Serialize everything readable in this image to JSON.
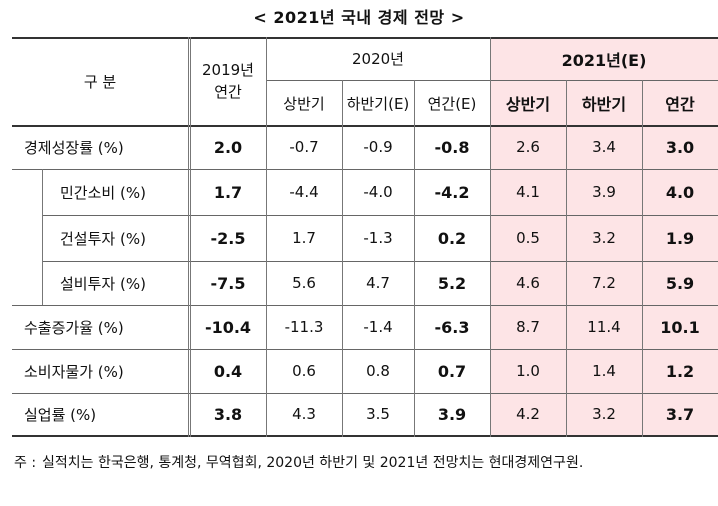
{
  "title": "< 2021년 국내 경제 전망 >",
  "header": {
    "category": "구     분",
    "y2019": "2019년",
    "y2019_sub": "연간",
    "y2020": "2020년",
    "y2020_h1": "상반기",
    "y2020_h2": "하반기(E)",
    "y2020_annual": "연간(E)",
    "y2021": "2021년(E)",
    "y2021_h1": "상반기",
    "y2021_h2": "하반기",
    "y2021_annual": "연간"
  },
  "rows": [
    {
      "label": "경제성장률 (%)",
      "v": [
        "2.0",
        "-0.7",
        "-0.9",
        "-0.8",
        "2.6",
        "3.4",
        "3.0"
      ]
    },
    {
      "label": "민간소비 (%)",
      "v": [
        "1.7",
        "-4.4",
        "-4.0",
        "-4.2",
        "4.1",
        "3.9",
        "4.0"
      ]
    },
    {
      "label": "건설투자 (%)",
      "v": [
        "-2.5",
        "1.7",
        "-1.3",
        "0.2",
        "0.5",
        "3.2",
        "1.9"
      ]
    },
    {
      "label": "설비투자 (%)",
      "v": [
        "-7.5",
        "5.6",
        "4.7",
        "5.2",
        "4.6",
        "7.2",
        "5.9"
      ]
    },
    {
      "label": "수출증가율 (%)",
      "v": [
        "-10.4",
        "-11.3",
        "-1.4",
        "-6.3",
        "8.7",
        "11.4",
        "10.1"
      ]
    },
    {
      "label": "소비자물가 (%)",
      "v": [
        "0.4",
        "0.6",
        "0.8",
        "0.7",
        "1.0",
        "1.4",
        "1.2"
      ]
    },
    {
      "label": "실업률 (%)",
      "v": [
        "3.8",
        "4.3",
        "3.5",
        "3.9",
        "4.2",
        "3.2",
        "3.7"
      ]
    }
  ],
  "note": {
    "prefix": "주 :",
    "text": "실적치는 한국은행, 통계청, 무역협회, 2020년 하반기 및 2021년 전망치는 현대경제연구원."
  }
}
